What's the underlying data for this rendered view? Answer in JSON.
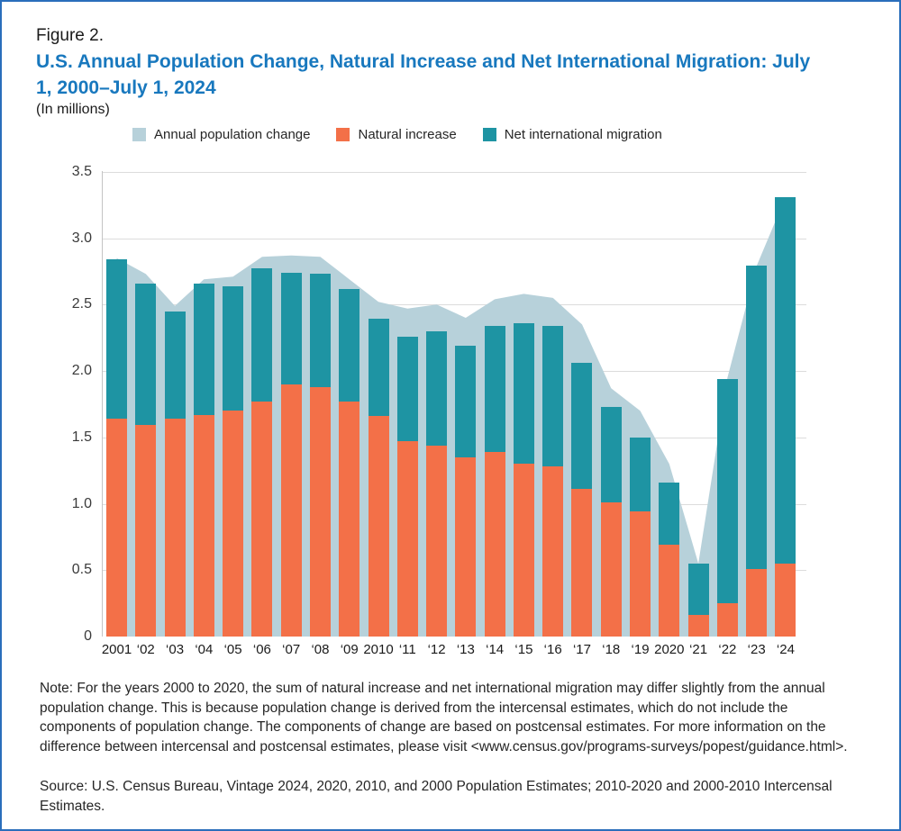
{
  "figure": {
    "label": "Figure 2.",
    "title": "U.S. Annual Population Change, Natural Increase and Net International Migration: July 1, 2000–July 1, 2024",
    "subtitle": "(In millions)"
  },
  "legend": {
    "items": [
      {
        "label": "Annual population change",
        "color": "#b7d1da"
      },
      {
        "label": "Natural increase",
        "color": "#f37048"
      },
      {
        "label": "Net international migration",
        "color": "#1e94a3"
      }
    ]
  },
  "chart_data": {
    "type": "area+stacked-bar",
    "title": "U.S. Annual Population Change, Natural Increase and Net International Migration: July 1, 2000–July 1, 2024",
    "units": "millions",
    "categories": [
      "2001",
      "‘02",
      "‘03",
      "‘04",
      "‘05",
      "‘06",
      "‘07",
      "‘08",
      "‘09",
      "2010",
      "‘11",
      "‘12",
      "‘13",
      "‘14",
      "‘15",
      "‘16",
      "‘17",
      "‘18",
      "‘19",
      "2020",
      "‘21",
      "‘22",
      "‘23",
      "‘24"
    ],
    "series": [
      {
        "name": "Annual population change",
        "type": "area",
        "color": "#b7d1da",
        "values": [
          2.85,
          2.73,
          2.49,
          2.69,
          2.71,
          2.86,
          2.87,
          2.86,
          2.69,
          2.52,
          2.47,
          2.5,
          2.4,
          2.54,
          2.58,
          2.55,
          2.35,
          1.87,
          1.7,
          1.3,
          0.55,
          1.95,
          2.79,
          3.31
        ]
      },
      {
        "name": "Natural increase",
        "type": "bar",
        "stack": "components",
        "color": "#f37048",
        "values": [
          1.64,
          1.59,
          1.64,
          1.67,
          1.7,
          1.77,
          1.9,
          1.88,
          1.77,
          1.66,
          1.47,
          1.44,
          1.35,
          1.39,
          1.3,
          1.28,
          1.11,
          1.01,
          0.94,
          0.69,
          0.16,
          0.25,
          0.51,
          0.55
        ]
      },
      {
        "name": "Net international migration",
        "type": "bar",
        "stack": "components",
        "color": "#1e94a3",
        "values": [
          1.2,
          1.07,
          0.81,
          0.99,
          0.94,
          1.0,
          0.84,
          0.85,
          0.85,
          0.73,
          0.79,
          0.86,
          0.84,
          0.95,
          1.06,
          1.06,
          0.95,
          0.72,
          0.56,
          0.47,
          0.39,
          1.69,
          2.28,
          2.76
        ]
      }
    ],
    "xlabel": "",
    "ylabel": "",
    "ylim": [
      0,
      3.5
    ],
    "y_ticks": [
      "0",
      "0.5",
      "1.0",
      "1.5",
      "2.0",
      "2.5",
      "3.0",
      "3.5"
    ],
    "grid": true,
    "legend_position": "top"
  },
  "note": "Note: For the years 2000 to 2020, the sum of natural increase and net international migration may differ slightly from the annual population change. This is because population change is derived from the intercensal estimates, which do not include the components of population change. The components of change are based on postcensal estimates. For more information on the difference between intercensal and postcensal estimates, please visit <www.census.gov/programs-surveys/popest/guidance.html>.",
  "source": "Source: U.S. Census Bureau, Vintage 2024, 2020, 2010, and 2000 Population Estimates; 2010-2020 and 2000-2010 Intercensal Estimates.",
  "colors": {
    "title_accent": "#1878be",
    "frame_border": "#2a6ebb",
    "gridline": "#dcdcdc",
    "axis_line": "#c4c4c4",
    "text": "#1a1a1a"
  }
}
